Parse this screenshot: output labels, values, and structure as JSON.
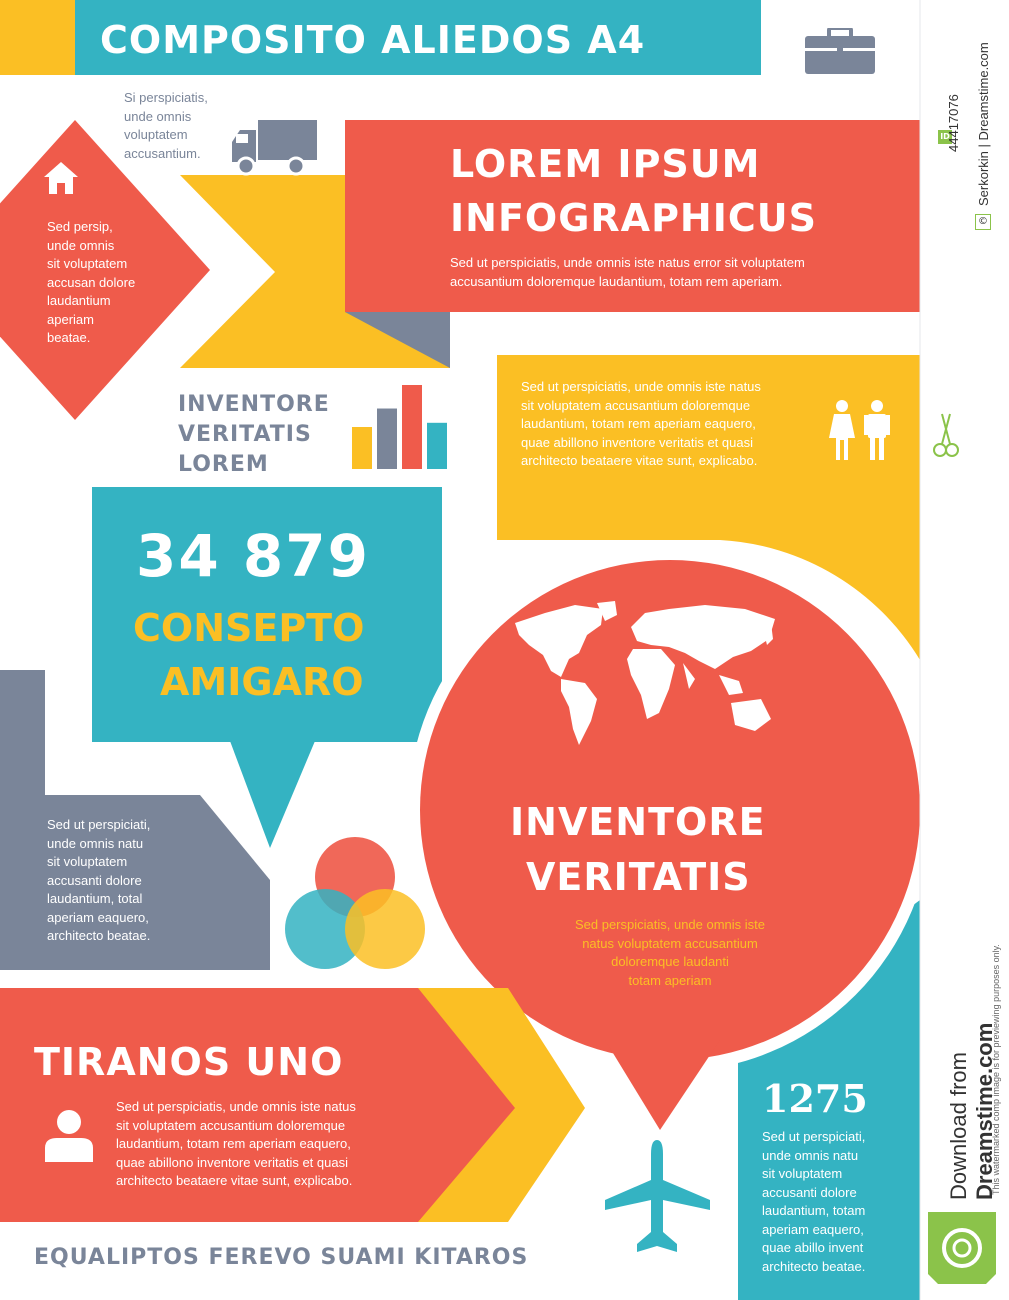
{
  "colors": {
    "red": "#ef5b4b",
    "teal": "#34b3c2",
    "yellow": "#fbbf24",
    "gray": "#7a8599",
    "white": "#ffffff"
  },
  "header": {
    "title": "COMPOSITO ALIEDOS A4",
    "icon": "briefcase-icon"
  },
  "truck": {
    "text": "Si perspiciatis,\nunde omnis\nvoluptatem\naccusantium.",
    "icon": "truck-icon"
  },
  "diamond": {
    "icon": "house-icon",
    "text": "Sed persip,\nunde omnis\nsit voluptatem\naccusan dolore\nlaudantium\naperiam\nbeatae."
  },
  "banner": {
    "line1": "LOREM IPSUM",
    "line2": "INFOGRAPHICUS",
    "text": "Sed ut perspiciatis, unde omnis iste natus error sit voluptatem\naccusantium doloremque laudantium, totam rem aperiam."
  },
  "bars": {
    "title": "INVENTORE\nVERITATIS\nLOREM",
    "icon": "bar-chart-icon",
    "values": [
      0.5,
      0.72,
      1.0,
      0.55
    ],
    "bar_colors": [
      "#fbbf24",
      "#7a8599",
      "#ef5b4b",
      "#34b3c2"
    ]
  },
  "yellow_box": {
    "text": "Sed ut perspiciatis, unde omnis iste natus\nsit voluptatem accusantium doloremque\nlaudantium, totam rem aperiam eaquero,\nquae abillono inventore veritatis et quasi\narchitecto beataere vitae sunt, explicabo.",
    "icon": "people-icon"
  },
  "stats": {
    "value": "34 879",
    "line1": "CONSEPTO",
    "line2": "AMIGARO"
  },
  "globe": {
    "icon": "world-map-icon",
    "title1": "INVENTORE",
    "title2": "VERITATIS",
    "text": "Sed perspiciatis, unde omnis iste\nnatus voluptatem accusantium\ndoloremque laudanti\ntotam aperiam"
  },
  "gray_block": {
    "text": "Sed ut perspiciati,\nunde omnis natu\nsit voluptatem\naccusanti dolore\nlaudantium, total\naperiam eaquero,\narchitecto beatae."
  },
  "venn": {
    "icon": "venn-diagram-icon"
  },
  "tiranos": {
    "title": "TIRANOS UNO",
    "icon": "user-icon",
    "text": "Sed ut perspiciatis, unde omnis iste natus\nsit voluptatem accusantium doloremque\nlaudantium, totam rem aperiam eaquero,\nquae abillono inventore veritatis et quasi\narchitecto beataere vitae sunt, explicabo."
  },
  "plane": {
    "icon": "airplane-icon"
  },
  "number_box": {
    "value": "1275",
    "text": "Sed ut perspiciati,\nunde omnis natu\nsit voluptatem\naccusanti dolore\nlaudantium, totam\naperiam eaquero,\nquae abillo invent\narchitecto beatae."
  },
  "footer": {
    "text": "EQUALIPTOS FEREVO SUAMI KITAROS"
  },
  "stock": {
    "id": "44417076",
    "credit": "Serkorkin | Dreamstime.com",
    "download_label": "Download from",
    "brand": "Dreamstime.com",
    "note": "This watermarked comp image is for previewing purposes only.",
    "id_badge": "ID",
    "copyright_symbol": "©",
    "icon": "scissors-icon",
    "logo_icon": "dreamstime-logo-icon"
  }
}
